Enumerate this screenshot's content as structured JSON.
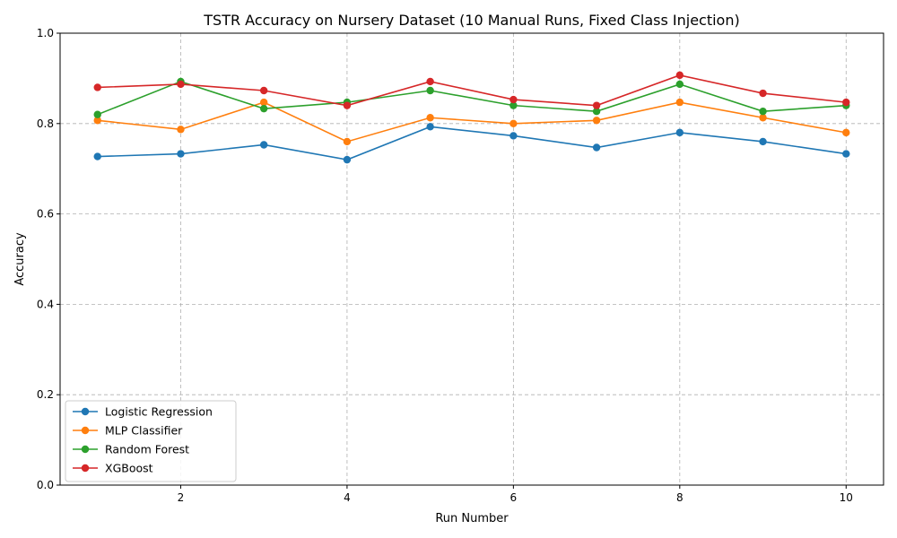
{
  "chart_data": {
    "type": "line",
    "title": "TSTR Accuracy on Nursery Dataset (10 Manual Runs, Fixed Class Injection)",
    "xlabel": "Run Number",
    "ylabel": "Accuracy",
    "x": [
      1,
      2,
      3,
      4,
      5,
      6,
      7,
      8,
      9,
      10
    ],
    "xlim": [
      0.55,
      10.45
    ],
    "ylim": [
      0.0,
      1.0
    ],
    "xticks": [
      2,
      4,
      6,
      8,
      10
    ],
    "xtick_labels": [
      "2",
      "4",
      "6",
      "8",
      "10"
    ],
    "yticks": [
      0.0,
      0.2,
      0.4,
      0.6,
      0.8,
      1.0
    ],
    "ytick_labels": [
      "0.0",
      "0.2",
      "0.4",
      "0.6",
      "0.8",
      "1.0"
    ],
    "grid": true,
    "legend_position": "lower-left",
    "series": [
      {
        "name": "Logistic Regression",
        "color": "#1f77b4",
        "values": [
          0.727,
          0.733,
          0.753,
          0.72,
          0.793,
          0.773,
          0.747,
          0.78,
          0.76,
          0.733
        ]
      },
      {
        "name": "MLP Classifier",
        "color": "#ff7f0e",
        "values": [
          0.807,
          0.787,
          0.847,
          0.76,
          0.813,
          0.8,
          0.807,
          0.847,
          0.813,
          0.78
        ]
      },
      {
        "name": "Random Forest",
        "color": "#2ca02c",
        "values": [
          0.82,
          0.893,
          0.833,
          0.847,
          0.873,
          0.84,
          0.827,
          0.887,
          0.827,
          0.84
        ]
      },
      {
        "name": "XGBoost",
        "color": "#d62728",
        "values": [
          0.88,
          0.887,
          0.873,
          0.84,
          0.893,
          0.853,
          0.84,
          0.907,
          0.867,
          0.847
        ]
      }
    ]
  }
}
